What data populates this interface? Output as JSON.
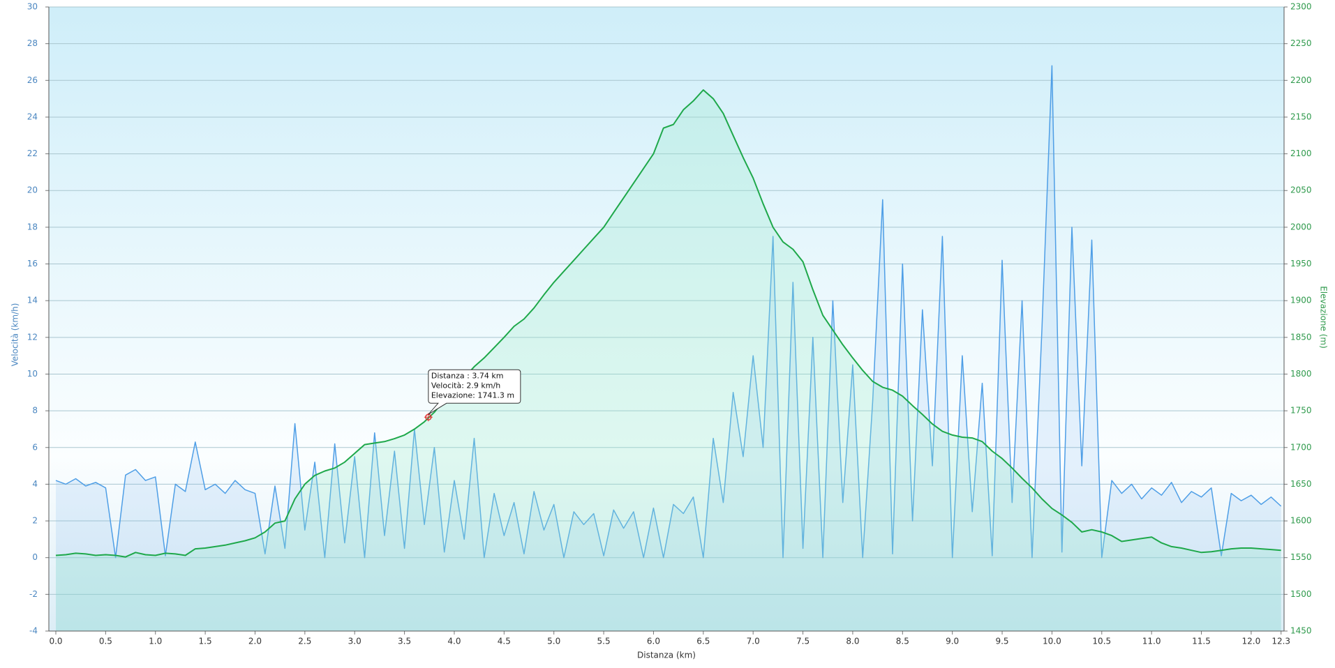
{
  "chart_data": {
    "type": "line",
    "xlabel": "Distanza  (km)",
    "ylabel": "Velocità (km/h)",
    "y2label": "Elevazione (m)",
    "x": [
      0.0,
      0.1,
      0.2,
      0.3,
      0.4,
      0.5,
      0.6,
      0.7,
      0.8,
      0.9,
      1.0,
      1.1,
      1.2,
      1.3,
      1.4,
      1.5,
      1.6,
      1.7,
      1.8,
      1.9,
      2.0,
      2.1,
      2.2,
      2.3,
      2.4,
      2.5,
      2.6,
      2.7,
      2.8,
      2.9,
      3.0,
      3.1,
      3.2,
      3.3,
      3.4,
      3.5,
      3.6,
      3.7,
      3.8,
      3.9,
      4.0,
      4.1,
      4.2,
      4.3,
      4.4,
      4.5,
      4.6,
      4.7,
      4.8,
      4.9,
      5.0,
      5.1,
      5.2,
      5.3,
      5.4,
      5.5,
      5.6,
      5.7,
      5.8,
      5.9,
      6.0,
      6.1,
      6.2,
      6.3,
      6.4,
      6.5,
      6.6,
      6.7,
      6.8,
      6.9,
      7.0,
      7.1,
      7.2,
      7.3,
      7.4,
      7.5,
      7.6,
      7.7,
      7.8,
      7.9,
      8.0,
      8.1,
      8.2,
      8.3,
      8.4,
      8.5,
      8.6,
      8.7,
      8.8,
      8.9,
      9.0,
      9.1,
      9.2,
      9.3,
      9.4,
      9.5,
      9.6,
      9.7,
      9.8,
      9.9,
      10.0,
      10.1,
      10.2,
      10.3,
      10.4,
      10.5,
      10.6,
      10.7,
      10.8,
      10.9,
      11.0,
      11.1,
      11.2,
      11.3,
      11.4,
      11.5,
      11.6,
      11.7,
      11.8,
      11.9,
      12.0,
      12.1,
      12.2,
      12.3
    ],
    "series": [
      {
        "name": "Velocità",
        "color": "#4e9ee6",
        "axis": "y",
        "values": [
          4.2,
          4.0,
          4.3,
          3.9,
          4.1,
          3.8,
          0,
          4.5,
          4.8,
          4.2,
          4.4,
          0.1,
          4.0,
          3.6,
          6.3,
          3.7,
          4.0,
          3.5,
          4.2,
          3.7,
          3.5,
          0.2,
          3.9,
          0.5,
          7.3,
          1.5,
          5.2,
          0,
          6.2,
          0.8,
          5.5,
          0,
          6.8,
          1.2,
          5.8,
          0.5,
          7.0,
          1.8,
          6.0,
          0.3,
          4.2,
          1.0,
          6.5,
          0,
          3.5,
          1.2,
          3.0,
          0.2,
          3.6,
          1.5,
          2.9,
          0,
          2.5,
          1.8,
          2.4,
          0.1,
          2.6,
          1.6,
          2.5,
          0,
          2.7,
          0,
          2.9,
          2.4,
          3.3,
          0,
          6.5,
          3.0,
          9.0,
          5.5,
          11.0,
          6.0,
          17.5,
          0,
          15.0,
          0.5,
          12.0,
          0,
          14.0,
          3.0,
          10.5,
          0,
          8.5,
          19.5,
          0.2,
          16.0,
          2.0,
          13.5,
          5.0,
          17.5,
          0,
          11.0,
          2.5,
          9.5,
          0.1,
          16.2,
          3.0,
          14.0,
          0,
          12.5,
          26.8,
          0.3,
          18.0,
          5.0,
          17.3,
          0,
          4.2,
          3.5,
          4.0,
          3.2,
          3.8,
          3.4,
          4.1,
          3.0,
          3.6,
          3.3,
          3.8,
          0.1,
          3.5,
          3.1,
          3.4,
          2.9,
          3.3,
          2.8
        ]
      },
      {
        "name": "Elevazione",
        "color": "#1ea84a",
        "axis": "y2",
        "values": [
          1553,
          1554,
          1556,
          1555,
          1553,
          1554,
          1553,
          1551,
          1557,
          1554,
          1553,
          1556,
          1555,
          1553,
          1562,
          1563,
          1565,
          1567,
          1570,
          1573,
          1577,
          1585,
          1597,
          1600,
          1630,
          1650,
          1662,
          1668,
          1672,
          1680,
          1692,
          1704,
          1706,
          1708,
          1712,
          1717,
          1725,
          1735,
          1748,
          1765,
          1782,
          1795,
          1810,
          1822,
          1836,
          1850,
          1865,
          1875,
          1890,
          1908,
          1925,
          1940,
          1955,
          1970,
          1985,
          2000,
          2020,
          2040,
          2060,
          2080,
          2100,
          2135,
          2140,
          2160,
          2172,
          2187,
          2175,
          2155,
          2125,
          2095,
          2067,
          2032,
          2000,
          1980,
          1970,
          1953,
          1915,
          1880,
          1860,
          1840,
          1822,
          1805,
          1790,
          1782,
          1778,
          1770,
          1757,
          1745,
          1732,
          1722,
          1717,
          1714,
          1713,
          1708,
          1695,
          1685,
          1672,
          1658,
          1645,
          1630,
          1617,
          1608,
          1598,
          1585,
          1588,
          1585,
          1580,
          1572,
          1574,
          1576,
          1578,
          1570,
          1565,
          1563,
          1560,
          1557,
          1558,
          1560,
          1562,
          1563,
          1563,
          1562,
          1561,
          1560
        ]
      }
    ],
    "xlim": [
      -0.07,
      12.33
    ],
    "xticks": [
      {
        "value": 0,
        "label": "0.0"
      },
      0.5,
      {
        "value": 1,
        "label": "1.0"
      },
      1.5,
      {
        "value": 2,
        "label": "2.0"
      },
      2.5,
      {
        "value": 3,
        "label": "3.0"
      },
      3.5,
      {
        "value": 4,
        "label": "4.0"
      },
      4.5,
      {
        "value": 5,
        "label": "5.0"
      },
      5.5,
      {
        "value": 6,
        "label": "6.0"
      },
      6.5,
      {
        "value": 7,
        "label": "7.0"
      },
      7.5,
      {
        "value": 8,
        "label": "8.0"
      },
      8.5,
      {
        "value": 9,
        "label": "9.0"
      },
      9.5,
      {
        "value": 10,
        "label": "10.0"
      },
      10.5,
      {
        "value": 11,
        "label": "11.0"
      },
      11.5,
      {
        "value": 12,
        "label": "12.0"
      },
      12.3
    ],
    "ylim": [
      -4,
      30
    ],
    "yticks": [
      -4,
      -2,
      0,
      2,
      4,
      6,
      8,
      10,
      12,
      14,
      16,
      18,
      20,
      22,
      24,
      26,
      28,
      30
    ],
    "y2lim": [
      1450,
      2300
    ],
    "y2ticks": [
      1450,
      1500,
      1550,
      1600,
      1650,
      1700,
      1750,
      1800,
      1850,
      1900,
      1950,
      2000,
      2050,
      2100,
      2150,
      2200,
      2250,
      2300
    ],
    "grid": true,
    "tooltip": {
      "x": 3.74,
      "speed": 2.9,
      "elevation": 1741.3,
      "lines": [
        "Distanza : 3.74 km",
        "Velocità: 2.9 km/h",
        "Elevazione: 1741.3 m"
      ]
    }
  }
}
